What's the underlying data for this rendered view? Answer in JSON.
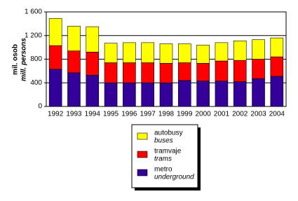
{
  "chart_data": {
    "type": "stacked-bar",
    "y_label": "mil. osob",
    "y_label_en": "mill. persons",
    "categories": [
      "1992",
      "1993",
      "1994",
      "1995",
      "1996",
      "1997",
      "1998",
      "1999",
      "2000",
      "2001",
      "2002",
      "2003",
      "2004"
    ],
    "series": [
      {
        "name": "metro",
        "name_en": "underground",
        "color": "#330099",
        "values": [
          630,
          570,
          530,
          400,
          400,
          400,
          400,
          440,
          430,
          430,
          420,
          470,
          510
        ]
      },
      {
        "name": "tramvaje",
        "name_en": "trams",
        "color": "#ff0000",
        "values": [
          400,
          370,
          390,
          340,
          340,
          340,
          330,
          300,
          300,
          340,
          360,
          330,
          330
        ]
      },
      {
        "name": "autobusy",
        "name_en": "buses",
        "color": "#ffff00",
        "values": [
          460,
          420,
          430,
          330,
          340,
          340,
          330,
          320,
          310,
          310,
          330,
          330,
          320
        ]
      }
    ],
    "ylim": [
      0,
      1600
    ],
    "yticks": [
      0,
      400,
      800,
      {
        "value": 1200,
        "label": "1 200"
      },
      {
        "value": 1600,
        "label": "1 600"
      }
    ],
    "grid": true
  }
}
